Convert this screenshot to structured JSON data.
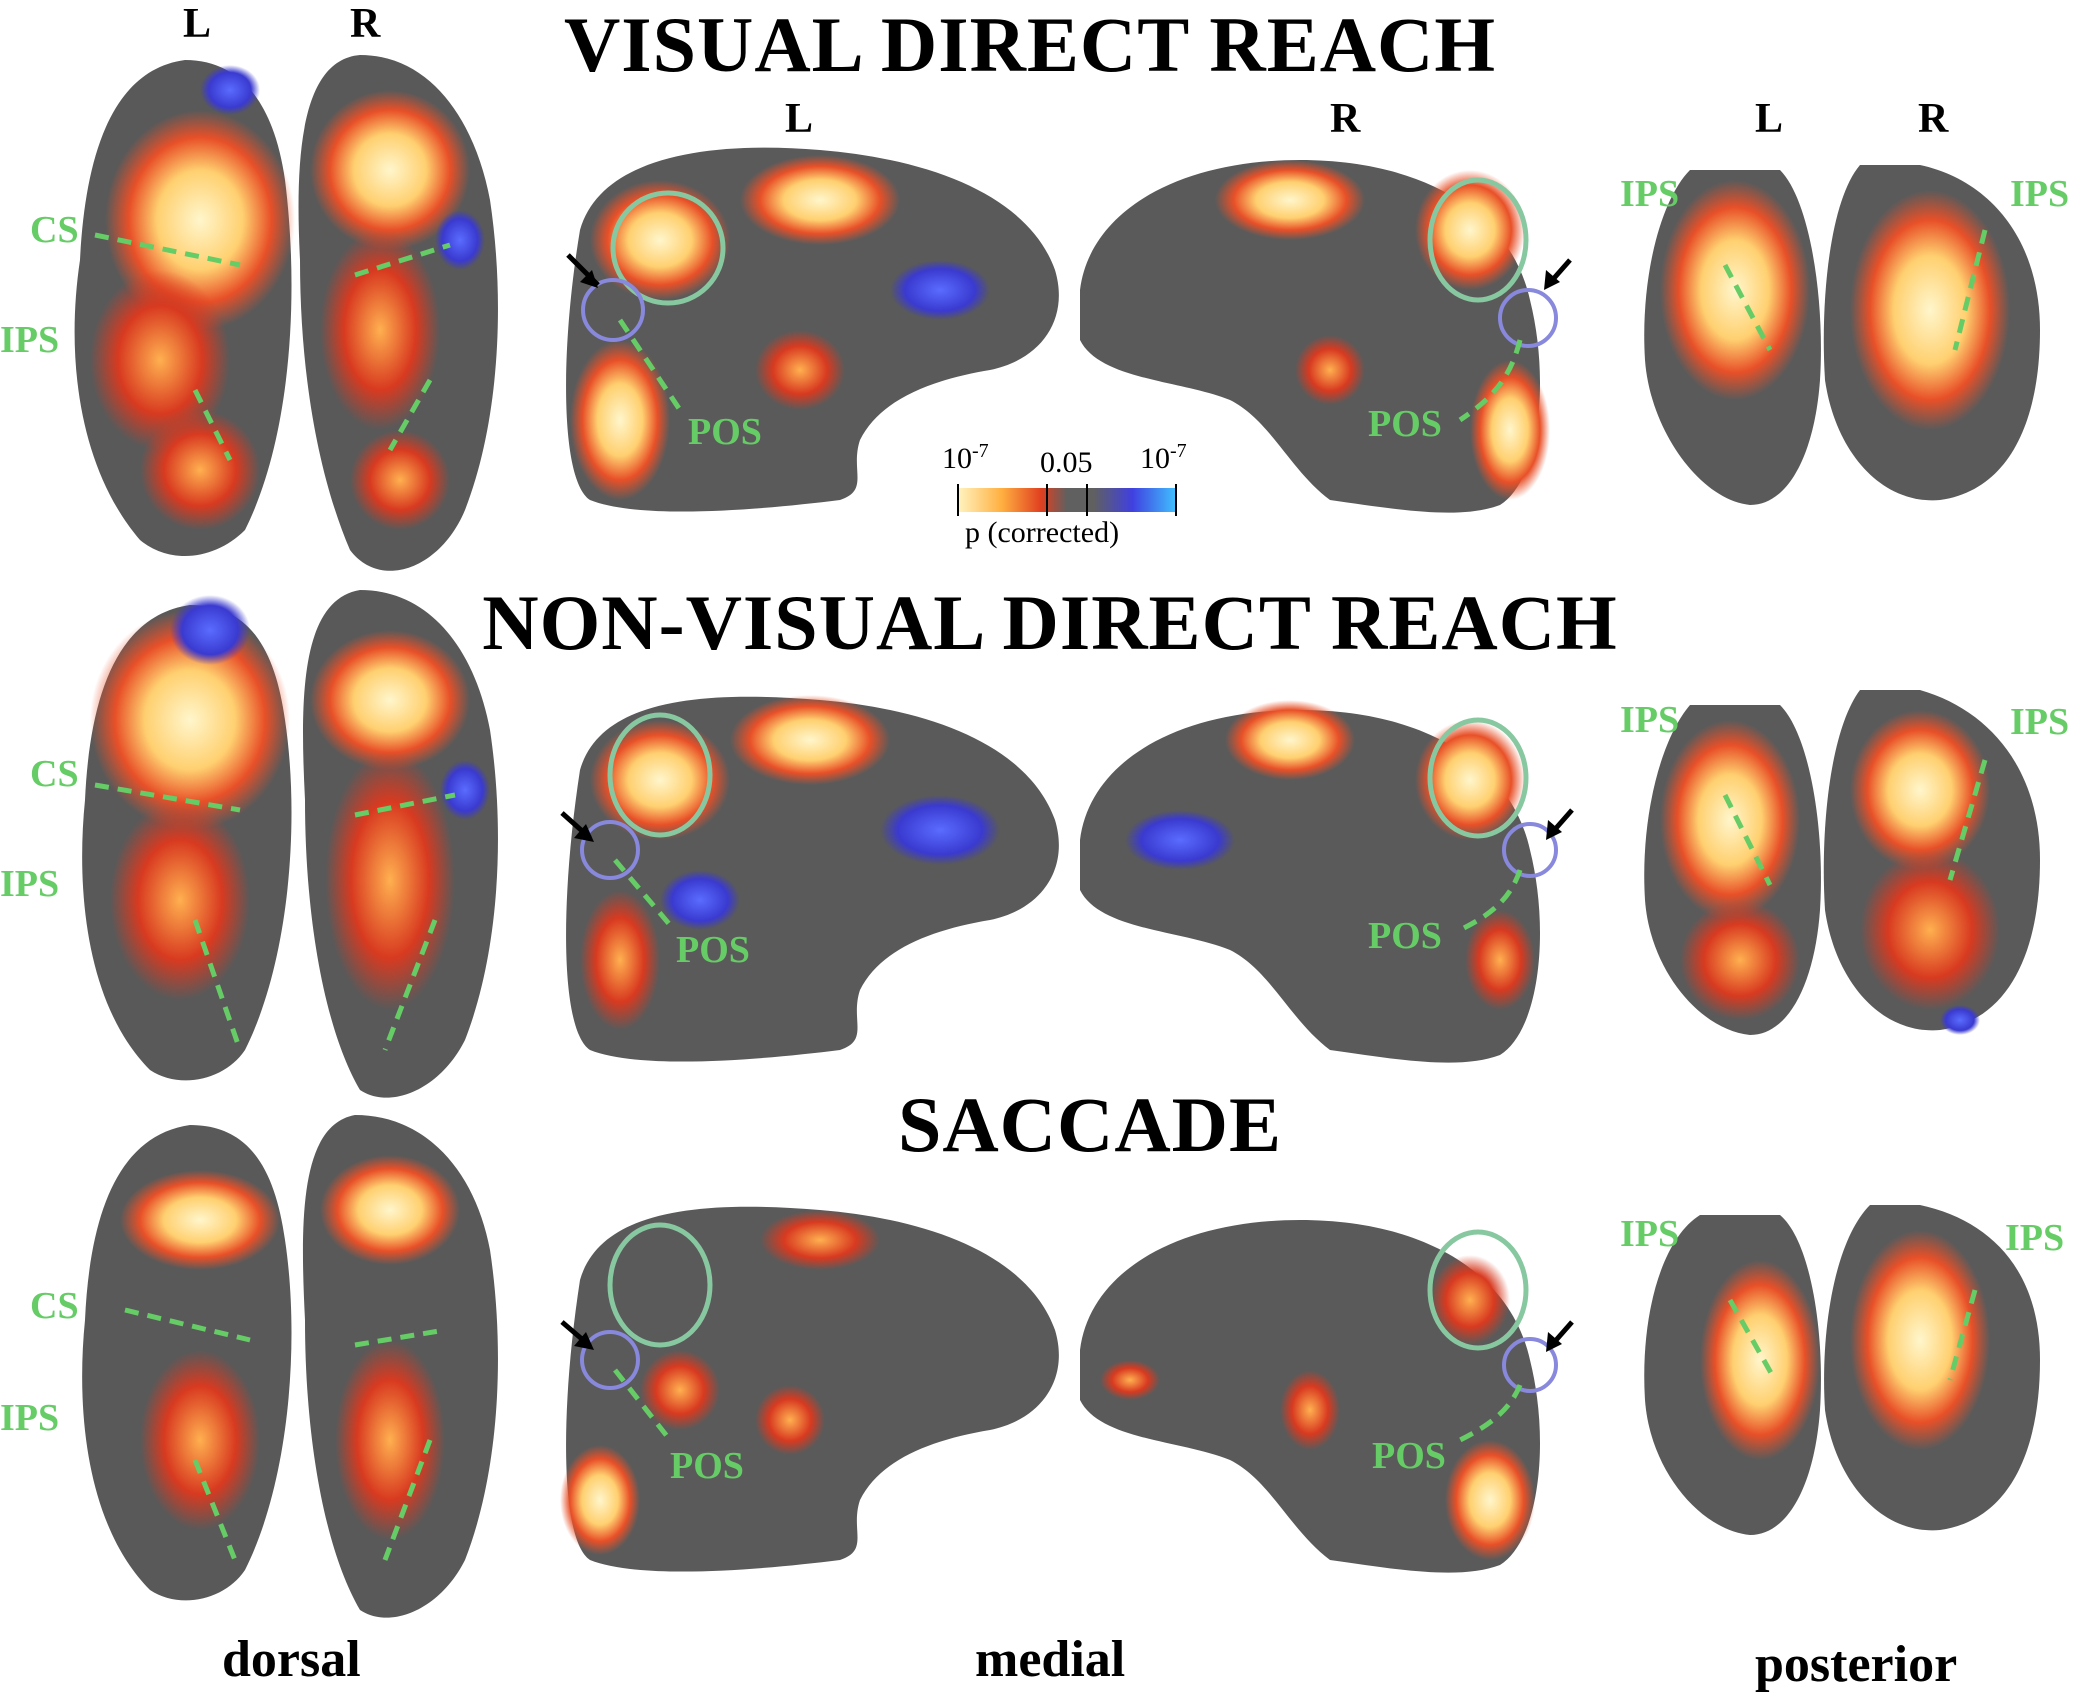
{
  "figure": {
    "titles": [
      "VISUAL DIRECT REACH",
      "NON-VISUAL DIRECT REACH",
      "SACCADE"
    ],
    "hemisphere_labels": {
      "left": "L",
      "right": "R"
    },
    "view_labels": {
      "dorsal": "dorsal",
      "medial": "medial",
      "posterior": "posterior"
    },
    "region_labels": {
      "cs": "CS",
      "ips": "IPS",
      "pos": "POS"
    },
    "colorbar": {
      "left_tick": "10",
      "left_exp": "-7",
      "mid_tick": "0.05",
      "right_tick": "10",
      "right_exp": "-7",
      "label": "p (corrected)",
      "colors": {
        "positive": [
          "#fff4c0",
          "#ffb040",
          "#e04020",
          "#606060"
        ],
        "negative": [
          "#606060",
          "#4040e0",
          "#40c0ff"
        ]
      }
    },
    "colors": {
      "region_label": "#66cc66",
      "roi_circle_large": "#88c8a0",
      "roi_circle_small": "#8888dd",
      "cortex": "#555555"
    }
  }
}
